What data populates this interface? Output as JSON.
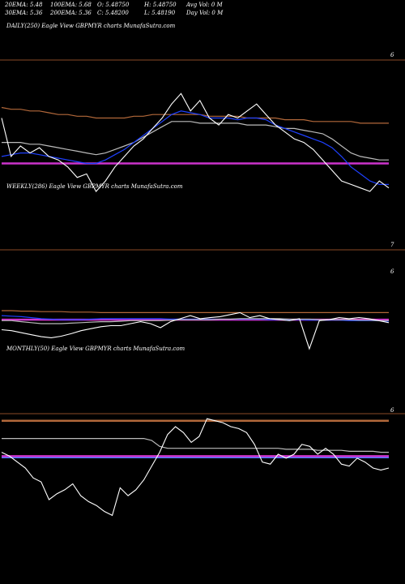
{
  "header": {
    "row1": [
      "20EMA: 5.48",
      "100EMA: 5.68",
      "O: 5.48750",
      "H: 5.48750",
      "Avg Vol: 0  M"
    ],
    "row2": [
      "30EMA: 5.36",
      "200EMA: 5.36",
      "C: 5.48200",
      "L: 5.48190",
      "Day Vol: 0  M"
    ]
  },
  "chart_data": [
    {
      "type": "line",
      "title": "DAILY(250) Eagle  View  GBPMYR charts MunafaSutra.com",
      "y_tick_labels": [
        "6"
      ],
      "ylim": [
        5.2,
        6.1
      ],
      "series": [
        {
          "values": [
            5.62,
            5.4,
            5.46,
            5.42,
            5.45,
            5.4,
            5.38,
            5.34,
            5.28,
            5.3,
            5.2,
            5.26,
            5.34,
            5.4,
            5.46,
            5.5,
            5.56,
            5.62,
            5.7,
            5.76,
            5.66,
            5.72,
            5.62,
            5.58,
            5.64,
            5.62,
            5.66,
            5.7,
            5.64,
            5.58,
            5.54,
            5.5,
            5.48,
            5.44,
            5.38,
            5.32,
            5.26,
            5.24,
            5.22,
            5.2,
            5.26,
            5.22
          ],
          "color": "#ffffff"
        },
        {
          "values": [
            5.4,
            5.41,
            5.42,
            5.42,
            5.41,
            5.4,
            5.39,
            5.38,
            5.37,
            5.36,
            5.36,
            5.38,
            5.41,
            5.44,
            5.48,
            5.52,
            5.56,
            5.6,
            5.64,
            5.66,
            5.65,
            5.64,
            5.62,
            5.62,
            5.62,
            5.61,
            5.62,
            5.62,
            5.61,
            5.58,
            5.56,
            5.54,
            5.52,
            5.5,
            5.48,
            5.45,
            5.4,
            5.34,
            5.3,
            5.26,
            5.24,
            5.24
          ],
          "color": "#1e40ff"
        },
        {
          "values": [
            5.48,
            5.48,
            5.48,
            5.47,
            5.47,
            5.46,
            5.45,
            5.44,
            5.43,
            5.42,
            5.41,
            5.42,
            5.44,
            5.46,
            5.48,
            5.51,
            5.54,
            5.57,
            5.6,
            5.6,
            5.6,
            5.59,
            5.59,
            5.59,
            5.59,
            5.59,
            5.58,
            5.58,
            5.58,
            5.57,
            5.56,
            5.56,
            5.55,
            5.54,
            5.53,
            5.5,
            5.46,
            5.42,
            5.4,
            5.39,
            5.38,
            5.38
          ],
          "color": "#bbbbbb"
        },
        {
          "values": [
            5.68,
            5.67,
            5.67,
            5.66,
            5.66,
            5.65,
            5.64,
            5.64,
            5.63,
            5.63,
            5.62,
            5.62,
            5.62,
            5.62,
            5.63,
            5.63,
            5.64,
            5.64,
            5.64,
            5.64,
            5.64,
            5.64,
            5.63,
            5.63,
            5.63,
            5.63,
            5.62,
            5.62,
            5.62,
            5.62,
            5.61,
            5.61,
            5.61,
            5.6,
            5.6,
            5.6,
            5.6,
            5.6,
            5.59,
            5.59,
            5.59,
            5.59
          ],
          "color": "#b2683a"
        },
        {
          "values": [
            5.36,
            5.36,
            5.36,
            5.36,
            5.36,
            5.36,
            5.36,
            5.36,
            5.36,
            5.36,
            5.36,
            5.36,
            5.36,
            5.36,
            5.36,
            5.36,
            5.36,
            5.36,
            5.36,
            5.36,
            5.36,
            5.36,
            5.36,
            5.36,
            5.36,
            5.36,
            5.36,
            5.36,
            5.36,
            5.36,
            5.36,
            5.36,
            5.36,
            5.36,
            5.36,
            5.36,
            5.36,
            5.36,
            5.36,
            5.36,
            5.36,
            5.36
          ],
          "color": "#cc33cc"
        }
      ]
    },
    {
      "type": "line",
      "title": "WEEKLY(286) Eagle  View  GBPMYR charts MunafaSutra.com",
      "y_tick_labels": [
        "7",
        "6"
      ],
      "ylim": [
        5.2,
        7.3
      ],
      "series": [
        {
          "values": [
            5.58,
            5.56,
            5.52,
            5.48,
            5.44,
            5.42,
            5.45,
            5.5,
            5.56,
            5.6,
            5.64,
            5.66,
            5.66,
            5.7,
            5.74,
            5.7,
            5.62,
            5.74,
            5.8,
            5.86,
            5.8,
            5.82,
            5.84,
            5.88,
            5.92,
            5.82,
            5.86,
            5.8,
            5.78,
            5.76,
            5.8,
            5.2,
            5.76,
            5.78,
            5.82,
            5.8,
            5.82,
            5.8,
            5.76,
            5.72
          ],
          "color": "#ffffff"
        },
        {
          "values": [
            5.76,
            5.76,
            5.74,
            5.72,
            5.7,
            5.7,
            5.7,
            5.71,
            5.72,
            5.73,
            5.74,
            5.74,
            5.75,
            5.76,
            5.76,
            5.76,
            5.76,
            5.77,
            5.78,
            5.78,
            5.78,
            5.78,
            5.79,
            5.79,
            5.8,
            5.8,
            5.8,
            5.8,
            5.8,
            5.79,
            5.79,
            5.79,
            5.78,
            5.78,
            5.78,
            5.78,
            5.77,
            5.77,
            5.76,
            5.76
          ],
          "color": "#bbbbbb"
        },
        {
          "values": [
            5.86,
            5.85,
            5.84,
            5.82,
            5.8,
            5.79,
            5.78,
            5.78,
            5.78,
            5.79,
            5.8,
            5.8,
            5.8,
            5.8,
            5.8,
            5.8,
            5.8,
            5.79,
            5.79,
            5.79,
            5.79,
            5.79,
            5.79,
            5.79,
            5.79,
            5.79,
            5.79,
            5.78,
            5.78,
            5.78,
            5.78,
            5.77,
            5.77,
            5.77,
            5.77,
            5.76,
            5.76,
            5.76,
            5.76,
            5.75
          ],
          "color": "#1e40ff"
        },
        {
          "values": [
            5.96,
            5.96,
            5.95,
            5.95,
            5.94,
            5.94,
            5.94,
            5.93,
            5.93,
            5.93,
            5.92,
            5.92,
            5.92,
            5.92,
            5.92,
            5.92,
            5.92,
            5.92,
            5.92,
            5.92,
            5.92,
            5.92,
            5.92,
            5.92,
            5.92,
            5.92,
            5.92,
            5.92,
            5.92,
            5.92,
            5.92,
            5.92,
            5.92,
            5.92,
            5.92,
            5.92,
            5.92,
            5.92,
            5.92,
            5.92
          ],
          "color": "#b2683a"
        },
        {
          "values": [
            5.78,
            5.78,
            5.78,
            5.78,
            5.78,
            5.78,
            5.78,
            5.78,
            5.78,
            5.78,
            5.78,
            5.78,
            5.78,
            5.78,
            5.78,
            5.78,
            5.78,
            5.78,
            5.78,
            5.78,
            5.78,
            5.78,
            5.78,
            5.78,
            5.78,
            5.78,
            5.78,
            5.78,
            5.78,
            5.78,
            5.78,
            5.78,
            5.78,
            5.78,
            5.78,
            5.78,
            5.78,
            5.78,
            5.78,
            5.78
          ],
          "color": "#cc33cc"
        }
      ]
    },
    {
      "type": "line",
      "title": "MONTHLY(50) Eagle  View  GBPMYR charts MunafaSutra.com",
      "y_tick_labels": [
        "6"
      ],
      "ylim": [
        4.9,
        6.15
      ],
      "series": [
        {
          "values": [
            5.66,
            5.62,
            5.56,
            5.5,
            5.4,
            5.36,
            5.18,
            5.24,
            5.28,
            5.34,
            5.22,
            5.16,
            5.12,
            5.06,
            5.02,
            5.3,
            5.22,
            5.28,
            5.38,
            5.52,
            5.66,
            5.84,
            5.92,
            5.86,
            5.76,
            5.82,
            6.0,
            5.98,
            5.96,
            5.92,
            5.9,
            5.86,
            5.74,
            5.56,
            5.54,
            5.64,
            5.6,
            5.64,
            5.74,
            5.72,
            5.64,
            5.7,
            5.64,
            5.54,
            5.52,
            5.6,
            5.56,
            5.5,
            5.48,
            5.5
          ],
          "color": "#ffffff"
        },
        {
          "values": [
            5.8,
            5.8,
            5.8,
            5.8,
            5.8,
            5.8,
            5.8,
            5.8,
            5.8,
            5.8,
            5.8,
            5.8,
            5.8,
            5.8,
            5.8,
            5.8,
            5.8,
            5.8,
            5.8,
            5.78,
            5.72,
            5.7,
            5.7,
            5.7,
            5.7,
            5.7,
            5.7,
            5.7,
            5.7,
            5.7,
            5.7,
            5.7,
            5.7,
            5.7,
            5.7,
            5.7,
            5.69,
            5.69,
            5.69,
            5.69,
            5.68,
            5.68,
            5.68,
            5.68,
            5.67,
            5.67,
            5.67,
            5.67,
            5.66,
            5.66
          ],
          "color": "#bbbbbb"
        },
        {
          "values": [
            5.98,
            5.98,
            5.98,
            5.98,
            5.98,
            5.98,
            5.98,
            5.98,
            5.98,
            5.98,
            5.98,
            5.98,
            5.98,
            5.98,
            5.98,
            5.98,
            5.98,
            5.98,
            5.98,
            5.98,
            5.98,
            5.98,
            5.98,
            5.98,
            5.98,
            5.98,
            5.98,
            5.98,
            5.98,
            5.98,
            5.98,
            5.98,
            5.98,
            5.98,
            5.98,
            5.98,
            5.98,
            5.98,
            5.98,
            5.98,
            5.98,
            5.98,
            5.98,
            5.98,
            5.98,
            5.98,
            5.98,
            5.98,
            5.98,
            5.98
          ],
          "color": "#b2683a"
        },
        {
          "values": [
            5.62,
            5.62,
            5.62,
            5.62,
            5.62,
            5.62,
            5.62,
            5.62,
            5.62,
            5.62,
            5.62,
            5.62,
            5.62,
            5.62,
            5.62,
            5.62,
            5.62,
            5.62,
            5.62,
            5.62,
            5.62,
            5.62,
            5.62,
            5.62,
            5.62,
            5.62,
            5.62,
            5.62,
            5.62,
            5.62,
            5.62,
            5.62,
            5.62,
            5.62,
            5.62,
            5.62,
            5.62,
            5.62,
            5.62,
            5.62,
            5.62,
            5.62,
            5.62,
            5.62,
            5.62,
            5.62,
            5.62,
            5.62,
            5.62,
            5.62
          ],
          "color": "#cc33cc"
        },
        {
          "values": [
            5.61,
            5.61,
            5.61,
            5.61,
            5.61,
            5.61,
            5.61,
            5.61,
            5.61,
            5.61,
            5.61,
            5.61,
            5.61,
            5.61,
            5.61,
            5.61,
            5.61,
            5.61,
            5.61,
            5.61,
            5.61,
            5.61,
            5.61,
            5.61,
            5.61,
            5.61,
            5.61,
            5.61,
            5.61,
            5.61,
            5.61,
            5.61,
            5.61,
            5.61,
            5.61,
            5.61,
            5.61,
            5.61,
            5.61,
            5.61,
            5.61,
            5.61,
            5.61,
            5.61,
            5.61,
            5.61,
            5.61,
            5.61,
            5.61,
            5.61
          ],
          "color": "#4a7dff"
        }
      ]
    }
  ]
}
